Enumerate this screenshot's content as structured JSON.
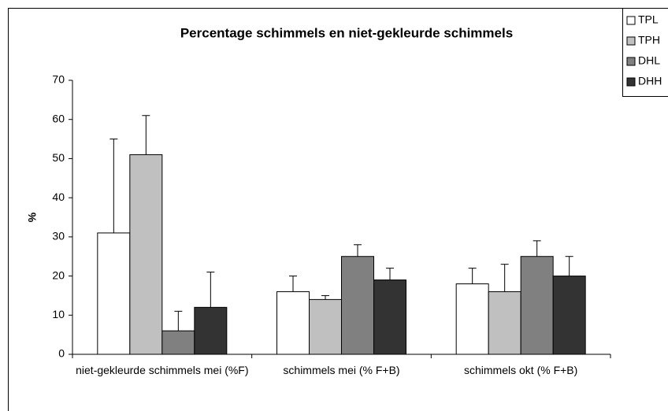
{
  "chart_data": {
    "type": "bar",
    "title": "Percentage schimmels en niet-gekleurde schimmels",
    "y_label": "%",
    "categories": [
      "niet-gekleurde schimmels mei (%F)",
      "schimmels mei (% F+B)",
      "schimmels okt (% F+B)"
    ],
    "series": [
      {
        "name": "TPL",
        "color": "#ffffff",
        "values": [
          31,
          16,
          18
        ],
        "errors": [
          24,
          4,
          4
        ]
      },
      {
        "name": "TPH",
        "color": "#c0c0c0",
        "values": [
          51,
          14,
          16
        ],
        "errors": [
          10,
          1,
          7
        ]
      },
      {
        "name": "DHL",
        "color": "#808080",
        "values": [
          6,
          25,
          25
        ],
        "errors": [
          5,
          3,
          4
        ]
      },
      {
        "name": "DHH",
        "color": "#333333",
        "values": [
          12,
          19,
          20
        ],
        "errors": [
          9,
          3,
          5
        ]
      }
    ],
    "ylim": [
      0,
      70
    ],
    "yticks": [
      0,
      10,
      20,
      30,
      40,
      50,
      60,
      70
    ],
    "legend": "top-right"
  }
}
